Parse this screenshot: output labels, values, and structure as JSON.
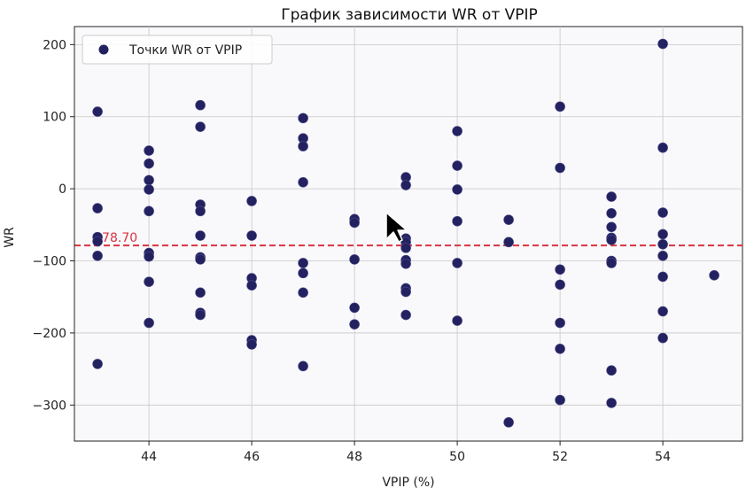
{
  "chart_data": {
    "type": "scatter",
    "title": "График зависимости WR от VPIP",
    "xlabel": "VPIP (%)",
    "ylabel": "WR",
    "xlim": [
      42.55,
      55.55
    ],
    "ylim": [
      -350,
      225
    ],
    "xticks": [
      44,
      46,
      48,
      50,
      52,
      54
    ],
    "yticks": [
      -300,
      -200,
      -100,
      0,
      100,
      200
    ],
    "grid": true,
    "legend_position": "top-left",
    "series": [
      {
        "name": "Точки WR от VPIP",
        "color": "#23215f",
        "points": [
          [
            43,
            107
          ],
          [
            43,
            -27
          ],
          [
            43,
            -67
          ],
          [
            43,
            -73
          ],
          [
            43,
            -93
          ],
          [
            43,
            -243
          ],
          [
            44,
            53
          ],
          [
            44,
            35
          ],
          [
            44,
            12
          ],
          [
            44,
            -1
          ],
          [
            44,
            -31
          ],
          [
            44,
            -89
          ],
          [
            44,
            -94
          ],
          [
            44,
            -129
          ],
          [
            44,
            -186
          ],
          [
            45,
            116
          ],
          [
            45,
            86
          ],
          [
            45,
            -22
          ],
          [
            45,
            -31
          ],
          [
            45,
            -65
          ],
          [
            45,
            -95
          ],
          [
            45,
            -98
          ],
          [
            45,
            -144
          ],
          [
            45,
            -172
          ],
          [
            45,
            -175
          ],
          [
            46,
            -17
          ],
          [
            46,
            -65
          ],
          [
            46,
            -124
          ],
          [
            46,
            -134
          ],
          [
            46,
            -210
          ],
          [
            46,
            -216
          ],
          [
            47,
            98
          ],
          [
            47,
            70
          ],
          [
            47,
            59
          ],
          [
            47,
            9
          ],
          [
            47,
            -103
          ],
          [
            47,
            -117
          ],
          [
            47,
            -144
          ],
          [
            47,
            -246
          ],
          [
            48,
            -42
          ],
          [
            48,
            -47
          ],
          [
            48,
            -98
          ],
          [
            48,
            -165
          ],
          [
            48,
            -188
          ],
          [
            49,
            16
          ],
          [
            49,
            5
          ],
          [
            49,
            -69
          ],
          [
            49,
            -74
          ],
          [
            49,
            -82
          ],
          [
            49,
            -99
          ],
          [
            49,
            -104
          ],
          [
            49,
            -138
          ],
          [
            49,
            -143
          ],
          [
            49,
            -175
          ],
          [
            50,
            80
          ],
          [
            50,
            32
          ],
          [
            50,
            -1
          ],
          [
            50,
            -45
          ],
          [
            50,
            -103
          ],
          [
            50,
            -183
          ],
          [
            51,
            -43
          ],
          [
            51,
            -74
          ],
          [
            51,
            -324
          ],
          [
            52,
            114
          ],
          [
            52,
            29
          ],
          [
            52,
            -112
          ],
          [
            52,
            -133
          ],
          [
            52,
            -186
          ],
          [
            52,
            -222
          ],
          [
            52,
            -293
          ],
          [
            53,
            -11
          ],
          [
            53,
            -34
          ],
          [
            53,
            -53
          ],
          [
            53,
            -68
          ],
          [
            53,
            -71
          ],
          [
            53,
            -100
          ],
          [
            53,
            -103
          ],
          [
            53,
            -252
          ],
          [
            53,
            -297
          ],
          [
            54,
            201
          ],
          [
            54,
            57
          ],
          [
            54,
            -33
          ],
          [
            54,
            -63
          ],
          [
            54,
            -77
          ],
          [
            54,
            -93
          ],
          [
            54,
            -122
          ],
          [
            54,
            -170
          ],
          [
            54,
            -207
          ],
          [
            55,
            -120
          ]
        ]
      }
    ],
    "reference_line": {
      "y": -78.7,
      "label": "-78.70",
      "color": "#d9333f"
    },
    "background": "#f9f9fb"
  }
}
